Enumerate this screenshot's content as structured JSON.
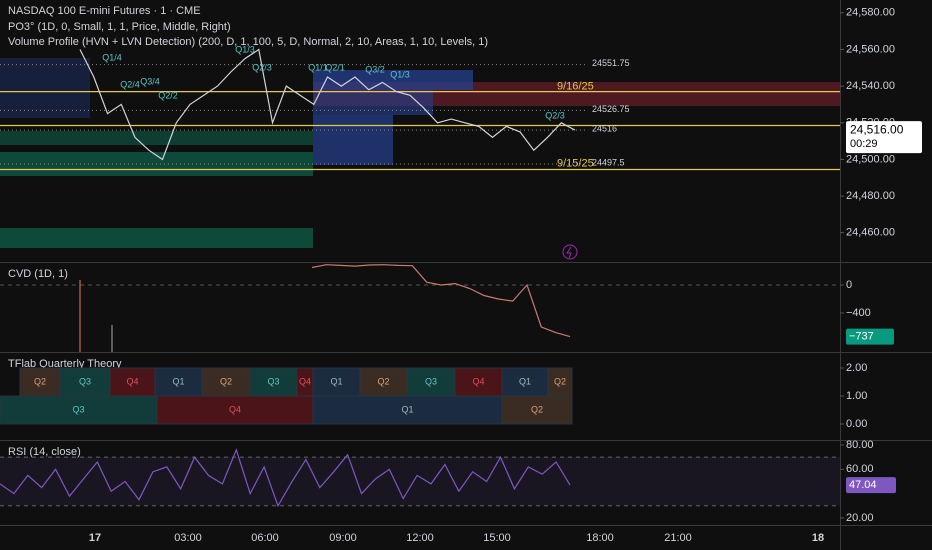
{
  "header": {
    "symbol": "NASDAQ 100 E-mini Futures · 1 · CME",
    "po3": "PO3° (1D, 0, Small, 1, 1, Price, Middle, Right)",
    "volume_profile": "Volume Profile (HVN + LVN Detection) (200, D, 1, 100, 5, D, Normal, 2, 10, Areas, 1, 10, Levels, 1)"
  },
  "price_pane": {
    "ylim": [
      24444,
      24587
    ],
    "yticks": [
      {
        "value": 24580,
        "label": "24,580.00"
      },
      {
        "value": 24560,
        "label": "24,560.00"
      },
      {
        "value": 24540,
        "label": "24,540.00"
      },
      {
        "value": 24520,
        "label": "24,520.00"
      },
      {
        "value": 24500,
        "label": "24,500.00"
      },
      {
        "value": 24480,
        "label": "24,480.00"
      },
      {
        "value": 24460,
        "label": "24,460.00"
      }
    ],
    "last_price": {
      "value": 24516,
      "label": "24,516.00"
    },
    "countdown": "00:29",
    "levels": [
      24551.75,
      24526.75,
      24516,
      24497.5
    ],
    "daily_lines": [
      24537,
      24518.5,
      24494.5
    ],
    "date_labels": [
      "9/16/25",
      "9/15/25"
    ],
    "session_labels": [
      "Q1/4",
      "Q2/4",
      "Q3/4",
      "Q2/2",
      "Q1/3",
      "Q2/3",
      "Q1/1",
      "Q2/1",
      "Q3/2",
      "Q1/3",
      "Q2/3"
    ],
    "closes": [
      24560,
      24545,
      24525,
      24530,
      24512,
      24505,
      24500,
      24520,
      24530,
      24535,
      24540,
      24548,
      24555,
      24560,
      24520,
      24540,
      24535,
      24530,
      24545,
      24540,
      24545,
      24538,
      24542,
      24537,
      24535,
      24528,
      24520,
      24522,
      24520,
      24518,
      24512,
      24518,
      24515,
      24505,
      24512,
      24520,
      24516
    ]
  },
  "cvd": {
    "title": "CVD (1D, 1)",
    "ylim": [
      -957,
      314
    ],
    "yticks": [
      0,
      {
        "value": -400,
        "label": "−400"
      }
    ],
    "last": {
      "value": -737,
      "label": "−737"
    },
    "values": [
      250,
      290,
      280,
      270,
      285,
      290,
      280,
      275,
      40,
      0,
      20,
      -50,
      -150,
      -200,
      -230,
      0,
      -600,
      -680,
      -737
    ]
  },
  "quarterly": {
    "title": "TFlab Quarterly Theory",
    "ylim": [
      -0.571,
      2.536
    ],
    "yticks": [
      {
        "value": 2,
        "label": "2.00"
      },
      {
        "value": 1,
        "label": "1.00"
      },
      {
        "value": 0,
        "label": "0.00"
      }
    ],
    "row1": [
      "Q2",
      "Q3",
      "Q4",
      "Q1",
      "Q2",
      "Q3",
      "Q4",
      "Q1",
      "Q2",
      "Q3",
      "Q4",
      "Q1",
      "Q2"
    ],
    "row2": [
      "Q3",
      "Q4",
      "Q1",
      "Q2"
    ]
  },
  "rsi": {
    "title": "RSI (14, close)",
    "ylim": [
      14.2,
      83.3
    ],
    "yticks": [
      {
        "value": 80,
        "label": "80.00"
      },
      {
        "value": 60,
        "label": "60.00"
      },
      {
        "value": 20,
        "label": "20.00"
      }
    ],
    "bands": [
      70,
      30
    ],
    "last": {
      "value": 47.04,
      "label": "47.04"
    },
    "values": [
      48,
      40,
      55,
      45,
      60,
      38,
      52,
      66,
      42,
      50,
      35,
      58,
      62,
      44,
      70,
      55,
      48,
      76,
      40,
      62,
      30,
      50,
      68,
      45,
      58,
      72,
      40,
      52,
      60,
      36,
      55,
      48,
      64,
      42,
      58,
      50,
      70,
      44,
      62,
      56,
      66,
      47.04
    ]
  },
  "time_axis": [
    "17",
    "03:00",
    "06:00",
    "09:00",
    "12:00",
    "15:00",
    "18:00",
    "21:00",
    "18"
  ]
}
